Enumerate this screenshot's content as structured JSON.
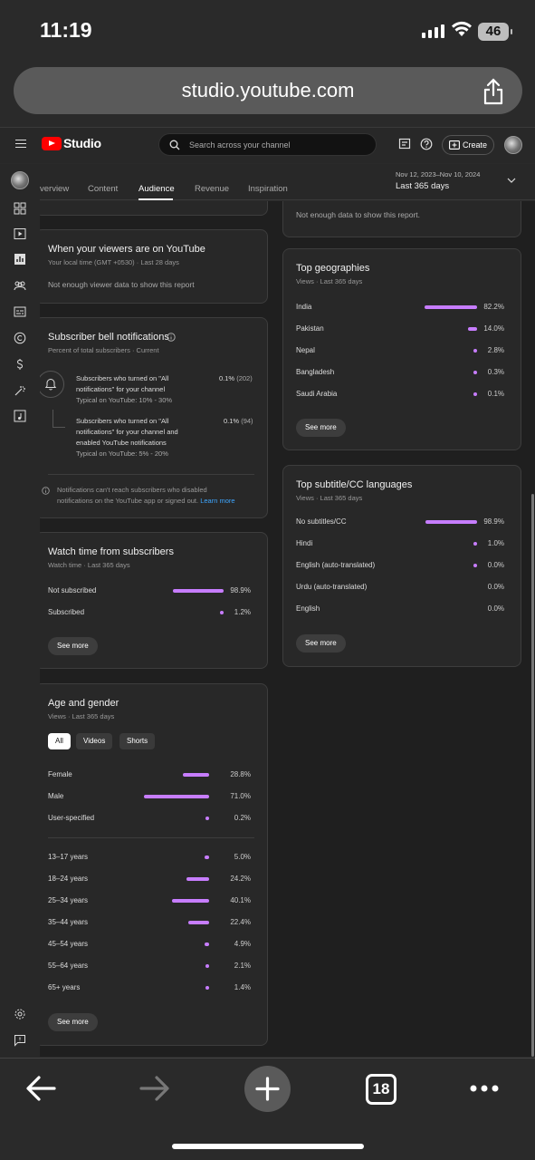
{
  "status": {
    "time": "11:19",
    "battery": "46"
  },
  "browser": {
    "url": "studio.youtube.com",
    "tab_count": "18"
  },
  "header": {
    "logo_text": "Studio",
    "search_placeholder": "Search across your channel",
    "create_label": "Create"
  },
  "tabs": {
    "items": [
      "verview",
      "Content",
      "Audience",
      "Revenue",
      "Inspiration"
    ],
    "active": "Audience"
  },
  "date_range": {
    "range": "Nov 12, 2023–Nov 10, 2024",
    "label": "Last 365 days"
  },
  "cards": {
    "top_partial_msg": "Not enough data to show this report.",
    "viewers_time": {
      "title": "When your viewers are on YouTube",
      "subtitle": "Your local time (GMT +0530) · Last 28 days",
      "message": "Not enough viewer data to show this report"
    },
    "bell": {
      "title": "Subscriber bell notifications",
      "subtitle": "Percent of total subscribers · Current",
      "row1": {
        "line1": "Subscribers who turned on \"All",
        "line2": "notifications\" for your channel",
        "typical": "Typical on YouTube: 10% - 30%",
        "value": "0.1%",
        "count": "(202)"
      },
      "row2": {
        "line1": "Subscribers who turned on \"All",
        "line2": "notifications\" for your channel and",
        "line3": "enabled YouTube notifications",
        "typical": "Typical on YouTube: 5% - 20%",
        "value": "0.1%",
        "count": "(94)"
      },
      "note_line1": "Notifications can't reach subscribers who disabled",
      "note_line2": "notifications on the YouTube app or signed out.",
      "learn_more": "Learn more"
    },
    "watch_time": {
      "title": "Watch time from subscribers",
      "subtitle": "Watch time · Last 365 days",
      "rows": [
        {
          "label": "Not subscribed",
          "value": "98.9%",
          "pct": 98.9
        },
        {
          "label": "Subscribed",
          "value": "1.2%",
          "pct": 1.2
        }
      ],
      "see_more": "See more"
    },
    "age_gender": {
      "title": "Age and gender",
      "subtitle": "Views · Last 365 days",
      "pills": [
        "All",
        "Videos",
        "Shorts"
      ],
      "gender": [
        {
          "label": "Female",
          "value": "28.8%",
          "pct": 28.8
        },
        {
          "label": "Male",
          "value": "71.0%",
          "pct": 71.0
        },
        {
          "label": "User-specified",
          "value": "0.2%",
          "pct": 0.2
        }
      ],
      "age": [
        {
          "label": "13–17 years",
          "value": "5.0%",
          "pct": 5.0
        },
        {
          "label": "18–24 years",
          "value": "24.2%",
          "pct": 24.2
        },
        {
          "label": "25–34 years",
          "value": "40.1%",
          "pct": 40.1
        },
        {
          "label": "35–44 years",
          "value": "22.4%",
          "pct": 22.4
        },
        {
          "label": "45–54 years",
          "value": "4.9%",
          "pct": 4.9
        },
        {
          "label": "55–64 years",
          "value": "2.1%",
          "pct": 2.1
        },
        {
          "label": "65+ years",
          "value": "1.4%",
          "pct": 1.4
        }
      ],
      "see_more": "See more"
    },
    "geographies": {
      "title": "Top geographies",
      "subtitle": "Views · Last 365 days",
      "rows": [
        {
          "label": "India",
          "value": "82.2%",
          "pct": 82.2
        },
        {
          "label": "Pakistan",
          "value": "14.0%",
          "pct": 14.0
        },
        {
          "label": "Nepal",
          "value": "2.8%",
          "pct": 2.8
        },
        {
          "label": "Bangladesh",
          "value": "0.3%",
          "pct": 0.3
        },
        {
          "label": "Saudi Arabia",
          "value": "0.1%",
          "pct": 0.1
        }
      ],
      "see_more": "See more"
    },
    "subtitles": {
      "title": "Top subtitle/CC languages",
      "subtitle": "Views · Last 365 days",
      "rows": [
        {
          "label": "No subtitles/CC",
          "value": "98.9%",
          "pct": 98.9
        },
        {
          "label": "Hindi",
          "value": "1.0%",
          "pct": 1.0
        },
        {
          "label": "English (auto-translated)",
          "value": "0.0%",
          "pct": 0.05
        },
        {
          "label": "Urdu (auto-translated)",
          "value": "0.0%",
          "pct": 0
        },
        {
          "label": "English",
          "value": "0.0%",
          "pct": 0
        }
      ],
      "see_more": "See more"
    }
  }
}
